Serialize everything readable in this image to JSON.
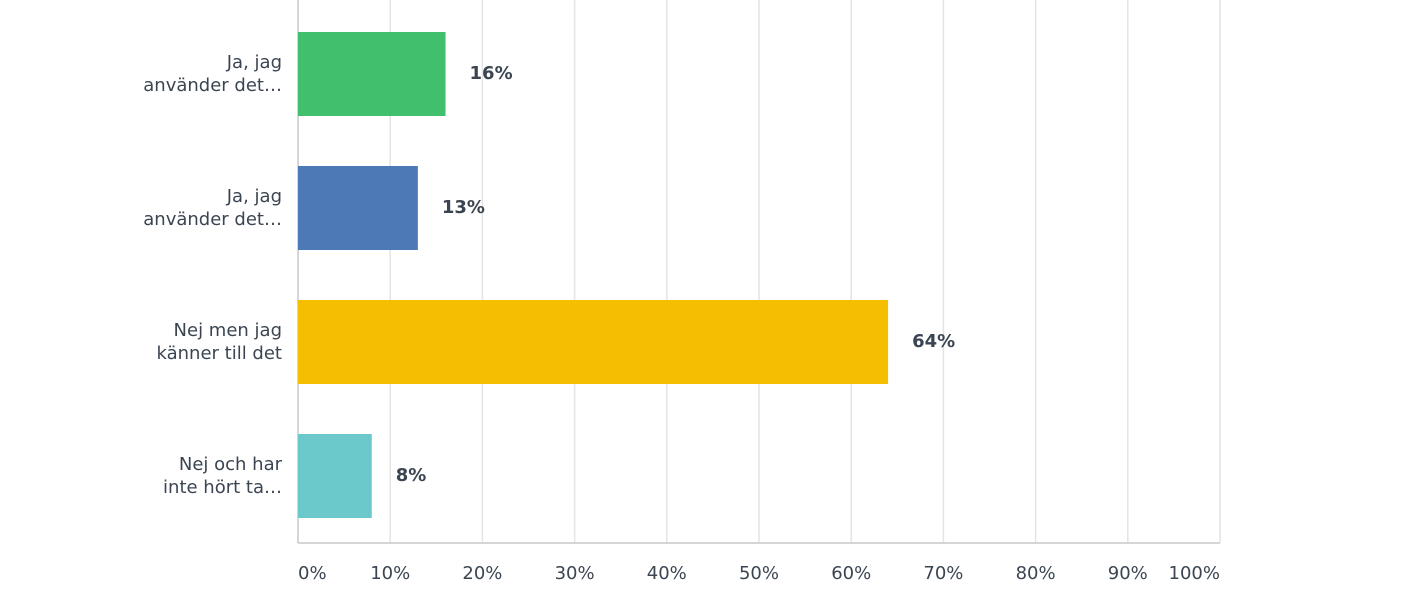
{
  "chart_data": {
    "type": "bar",
    "orientation": "horizontal",
    "categories": [
      "Ja, jag\nanvänder det…",
      "Ja, jag\nanvänder det…",
      "Nej men jag\nkänner till det",
      "Nej och har\ninte hört ta…"
    ],
    "values": [
      16,
      13,
      64,
      8
    ],
    "value_labels": [
      "16%",
      "13%",
      "64%",
      "8%"
    ],
    "colors": [
      "#42bf6d",
      "#4d7ab7",
      "#f6be00",
      "#6bc8cb"
    ],
    "xlim": [
      0,
      100
    ],
    "xticks": [
      {
        "value": 0,
        "label": "0%"
      },
      {
        "value": 10,
        "label": "10%"
      },
      {
        "value": 20,
        "label": "20%"
      },
      {
        "value": 30,
        "label": "30%"
      },
      {
        "value": 40,
        "label": "40%"
      },
      {
        "value": 50,
        "label": "50%"
      },
      {
        "value": 60,
        "label": "60%"
      },
      {
        "value": 70,
        "label": "70%"
      },
      {
        "value": 80,
        "label": "80%"
      },
      {
        "value": 90,
        "label": "90%"
      },
      {
        "value": 100,
        "label": "100%"
      }
    ],
    "grid": true
  }
}
